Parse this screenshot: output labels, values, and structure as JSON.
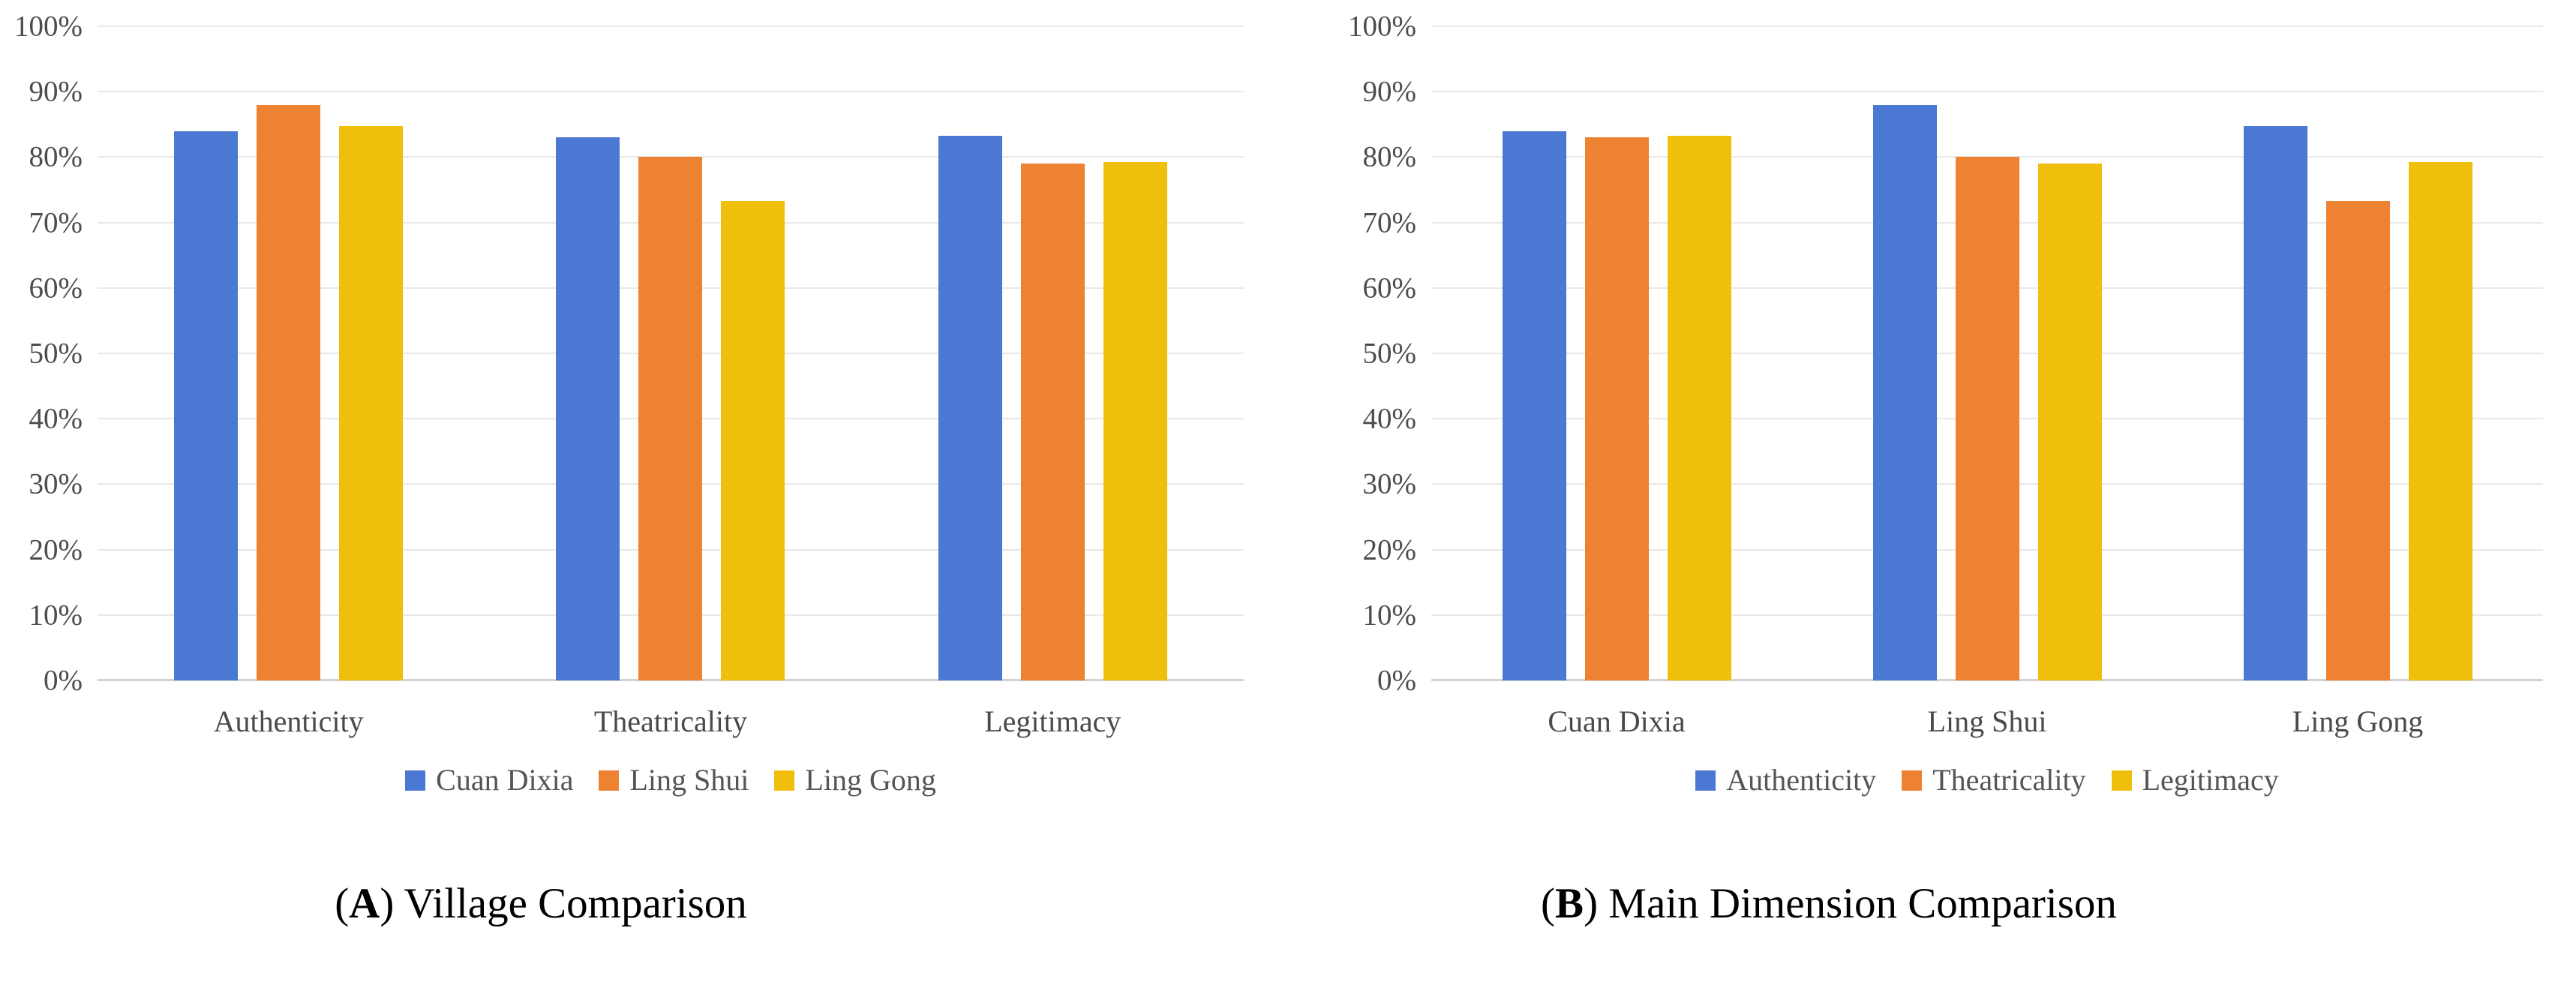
{
  "chart_data": [
    {
      "type": "bar",
      "panel": "A",
      "title": "(A) Village Comparison",
      "categories": [
        "Authenticity",
        "Theatricality",
        "Legitimacy"
      ],
      "series": [
        {
          "name": "Cuan Dixia",
          "color": "#4A78D2",
          "values": [
            84,
            83,
            83.3
          ]
        },
        {
          "name": "Ling Shui",
          "color": "#EE8233",
          "values": [
            88,
            80,
            79
          ]
        },
        {
          "name": "Ling Gong",
          "color": "#F0BF0B",
          "values": [
            84.7,
            73.3,
            79.2
          ]
        }
      ],
      "xlabel": "",
      "ylabel": "",
      "ylim": [
        0,
        100
      ],
      "ytick_step": 10,
      "ytick_suffix": "%",
      "grid": true,
      "legend_position": "bottom"
    },
    {
      "type": "bar",
      "panel": "B",
      "title": "(B) Main Dimension Comparison",
      "categories": [
        "Cuan Dixia",
        "Ling Shui",
        "Ling Gong"
      ],
      "series": [
        {
          "name": "Authenticity",
          "color": "#4A78D2",
          "values": [
            84,
            88,
            84.7
          ]
        },
        {
          "name": "Theatricality",
          "color": "#EE8233",
          "values": [
            83,
            80,
            73.3
          ]
        },
        {
          "name": "Legitimacy",
          "color": "#F0BF0B",
          "values": [
            83.3,
            79,
            79.2
          ]
        }
      ],
      "xlabel": "",
      "ylabel": "",
      "ylim": [
        0,
        100
      ],
      "ytick_step": 10,
      "ytick_suffix": "%",
      "grid": true,
      "legend_position": "bottom"
    }
  ],
  "captions": [
    {
      "paren_open": "(",
      "letter": "A",
      "paren_close": ")",
      "text": " Village Comparison"
    },
    {
      "paren_open": "(",
      "letter": "B",
      "paren_close": ")",
      "text": " Main Dimension Comparison"
    }
  ]
}
